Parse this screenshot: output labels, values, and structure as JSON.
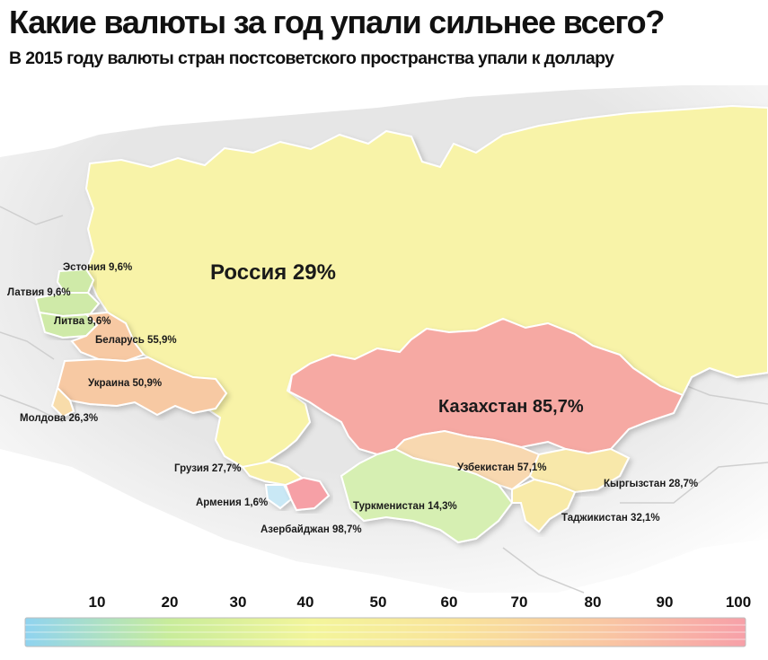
{
  "title": "Какие валюты за год упали сильнее всего?",
  "subtitle": "В 2015 году валюты стран постсоветского пространства упали к доллару",
  "colors": {
    "russia": "#f8f3a8",
    "kazakhstan": "#f6a9a3",
    "ukraine": "#f7c9a3",
    "belarus": "#f7c9a3",
    "baltics": "#cfeaa8",
    "moldova": "#f8dcaa",
    "georgia": "#f8f0a6",
    "armenia": "#c9e8f5",
    "azerbaijan": "#f6a0a6",
    "turkmenistan": "#d6efb2",
    "uzbekistan": "#f8d8b0",
    "kyrgyzstan": "#f8e8aa",
    "tajikistan": "#f8eaa8",
    "background_land": "#e9e9e9",
    "sea": "#ffffff"
  },
  "map": {
    "countries": [
      {
        "id": "estonia",
        "label": "Эстония 9,6%"
      },
      {
        "id": "latvia",
        "label": "Латвия 9,6%"
      },
      {
        "id": "lithuania",
        "label": "Литва 9,6%"
      },
      {
        "id": "belarus",
        "label": "Беларусь 55,9%"
      },
      {
        "id": "ukraine",
        "label": "Украина 50,9%"
      },
      {
        "id": "moldova",
        "label": "Молдова 26,3%"
      },
      {
        "id": "georgia",
        "label": "Грузия 27,7%"
      },
      {
        "id": "armenia",
        "label": "Армения 1,6%"
      },
      {
        "id": "azerbaijan",
        "label": "Азербайджан 98,7%"
      },
      {
        "id": "turkmenistan",
        "label": "Туркменистан 14,3%"
      },
      {
        "id": "uzbekistan",
        "label": "Узбекистан 57,1%"
      },
      {
        "id": "kyrgyzstan",
        "label": "Кыргызстан 28,7%"
      },
      {
        "id": "tajikistan",
        "label": "Таджикистан 32,1%"
      },
      {
        "id": "russia",
        "label": "Россия 29%"
      },
      {
        "id": "kazakhstan",
        "label": "Казахстан 85,7%"
      }
    ]
  },
  "scale": {
    "ticks": [
      "10",
      "20",
      "30",
      "40",
      "50",
      "60",
      "70",
      "80",
      "90",
      "100"
    ],
    "gradient": [
      "#8fd3f0",
      "#c8ec9a",
      "#f3f59a",
      "#f9e39a",
      "#f9c7a2",
      "#f7a0a8"
    ]
  }
}
